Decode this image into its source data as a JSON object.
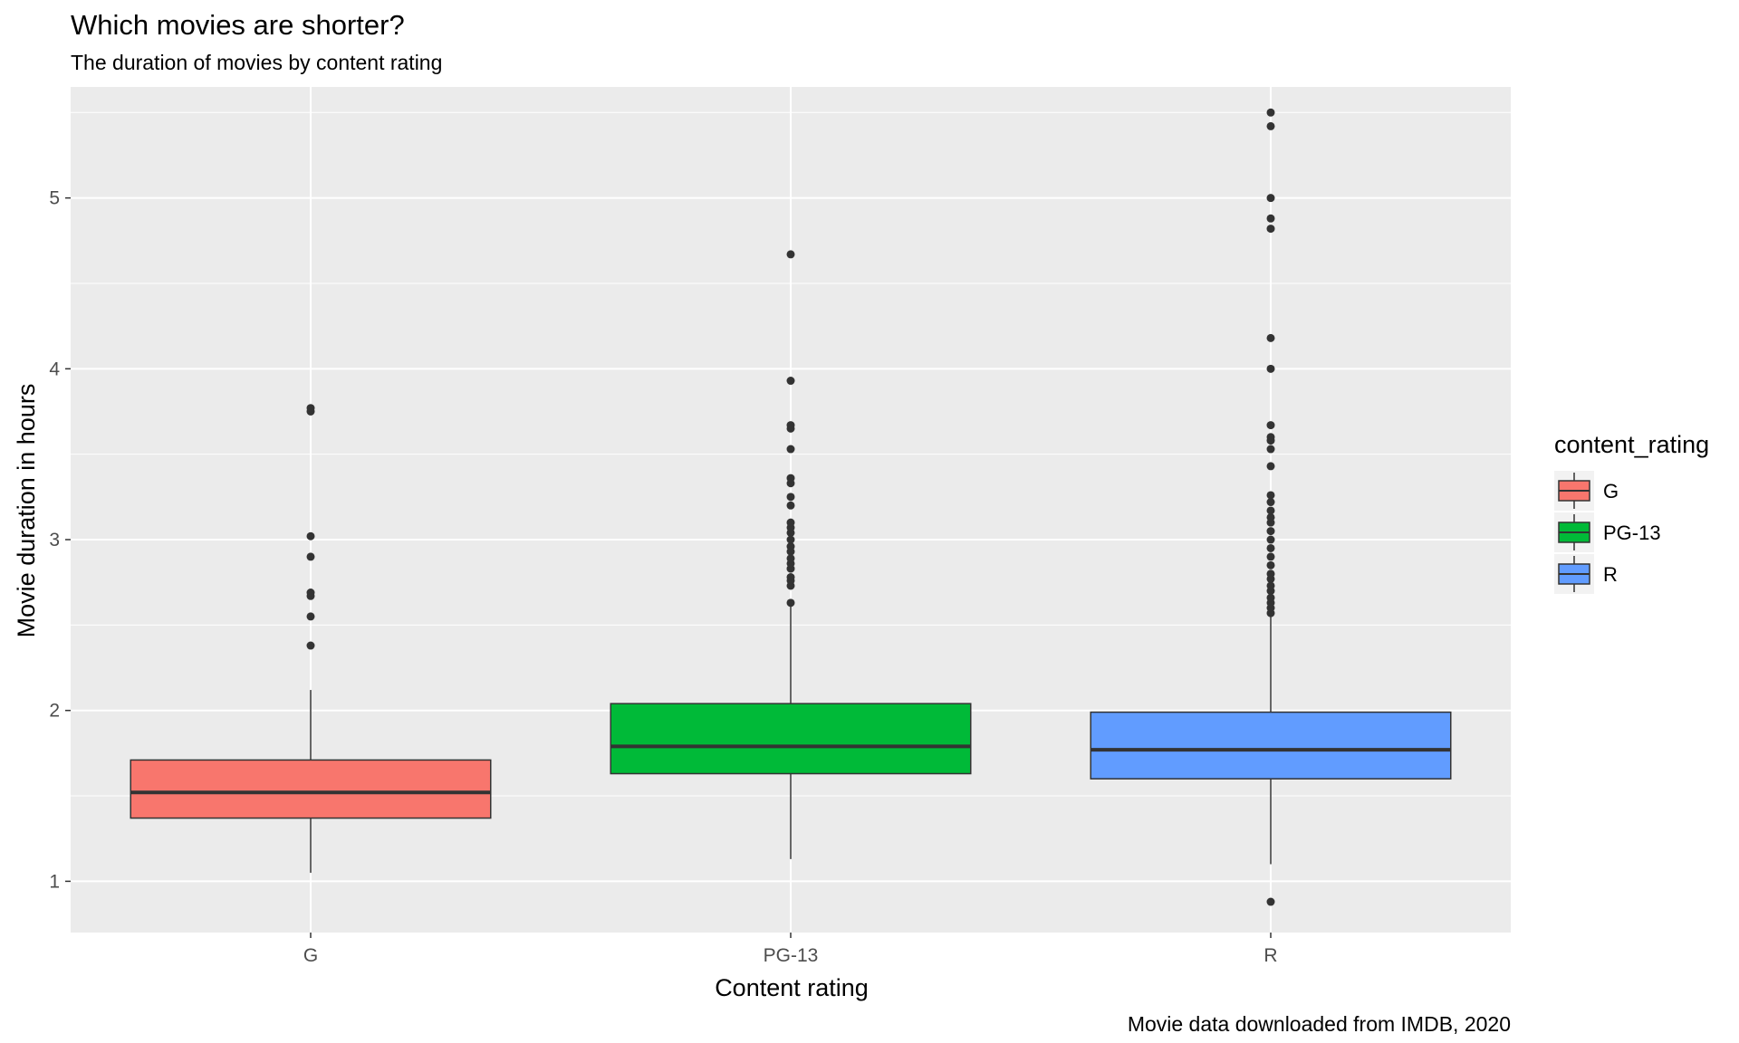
{
  "chart_data": {
    "type": "boxplot",
    "title": "Which movies are shorter?",
    "subtitle": "The duration of movies by content rating",
    "xlabel": "Content rating",
    "ylabel": "Movie duration in hours",
    "caption": "Movie data downloaded from IMDB, 2020",
    "categories": [
      "G",
      "PG-13",
      "R"
    ],
    "ylim": [
      0.7,
      5.65
    ],
    "yticks": [
      1,
      2,
      3,
      4,
      5
    ],
    "grid": true,
    "legend": {
      "title": "content_rating",
      "position": "right",
      "entries": [
        "G",
        "PG-13",
        "R"
      ]
    },
    "colors": [
      "#F8766D",
      "#00BA38",
      "#619CFF"
    ],
    "series": [
      {
        "name": "G",
        "whisker_low": 1.05,
        "q1": 1.37,
        "median": 1.52,
        "q3": 1.71,
        "whisker_high": 2.12,
        "outliers": [
          2.38,
          2.55,
          2.67,
          2.69,
          2.9,
          3.02,
          3.75,
          3.77
        ]
      },
      {
        "name": "PG-13",
        "whisker_low": 1.13,
        "q1": 1.63,
        "median": 1.79,
        "q3": 2.04,
        "whisker_high": 2.62,
        "outliers": [
          2.63,
          2.73,
          2.76,
          2.78,
          2.83,
          2.86,
          2.89,
          2.93,
          2.96,
          3.0,
          3.04,
          3.07,
          3.1,
          3.2,
          3.25,
          3.33,
          3.36,
          3.53,
          3.65,
          3.67,
          3.93,
          4.67
        ]
      },
      {
        "name": "R",
        "whisker_low": 1.1,
        "q1": 1.6,
        "median": 1.77,
        "q3": 1.99,
        "whisker_high": 2.55,
        "outliers": [
          0.88,
          2.57,
          2.6,
          2.63,
          2.66,
          2.7,
          2.73,
          2.77,
          2.8,
          2.85,
          2.9,
          2.95,
          3.0,
          3.05,
          3.1,
          3.13,
          3.17,
          3.22,
          3.26,
          3.43,
          3.53,
          3.58,
          3.6,
          3.67,
          4.0,
          4.18,
          4.82,
          4.88,
          5.0,
          5.42,
          5.5
        ]
      }
    ]
  }
}
